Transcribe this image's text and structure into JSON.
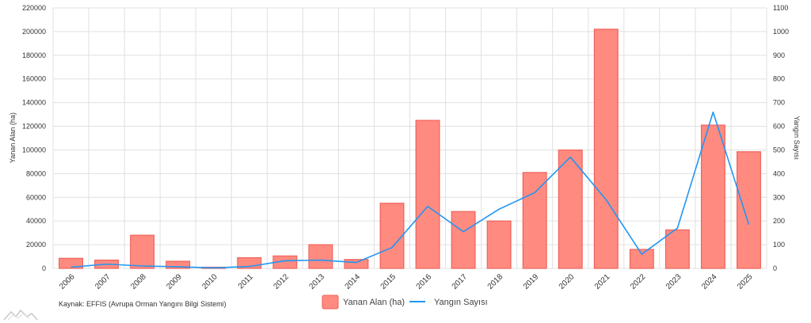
{
  "source_text": "Kaynak: EFFIS (Avrupa Orman Yangını Bilgi Sistemi)",
  "colors": {
    "bar_fill": "#ff8a80",
    "bar_stroke": "#f0625a",
    "line": "#2196f3",
    "grid": "#e0e0e0"
  },
  "chart_data": {
    "type": "bar",
    "categories": [
      "2006",
      "2007",
      "2008",
      "2009",
      "2010",
      "2011",
      "2012",
      "2013",
      "2014",
      "2015",
      "2016",
      "2017",
      "2018",
      "2019",
      "2020",
      "2021",
      "2022",
      "2023",
      "2024",
      "2025"
    ],
    "series": [
      {
        "name": "Yanan Alan (ha)",
        "type": "bar",
        "axis": "left",
        "values": [
          8500,
          7000,
          28000,
          6000,
          1000,
          9000,
          10500,
          20000,
          7500,
          55000,
          125000,
          48000,
          40000,
          81000,
          100000,
          202000,
          16000,
          32500,
          121000,
          98500
        ]
      },
      {
        "name": "Yangın Sayısı",
        "type": "line",
        "axis": "right",
        "values": [
          5,
          18,
          10,
          7,
          2,
          8,
          32,
          35,
          25,
          88,
          262,
          155,
          250,
          320,
          470,
          290,
          60,
          170,
          660,
          185
        ]
      }
    ],
    "ylabel": "Yanan Alan (ha)",
    "ylabel_right": "Yangın Sayısı",
    "ylim": [
      0,
      220000
    ],
    "ylim_right": [
      0,
      1100
    ],
    "yticks": [
      0,
      20000,
      40000,
      60000,
      80000,
      100000,
      120000,
      140000,
      160000,
      180000,
      200000,
      220000
    ],
    "yticks_right": [
      0,
      100,
      200,
      300,
      400,
      500,
      600,
      700,
      800,
      900,
      1000,
      1100
    ],
    "grid": true,
    "legend": "bottom-center"
  }
}
